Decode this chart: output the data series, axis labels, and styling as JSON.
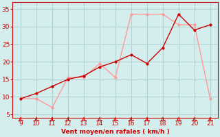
{
  "x_values": [
    9,
    10,
    11,
    12,
    13,
    14,
    15,
    16,
    17,
    18,
    19,
    20,
    21
  ],
  "wind_avg": [
    9.5,
    11,
    13,
    15,
    16,
    18.5,
    20,
    22,
    19.5,
    24,
    33.5,
    29,
    30.5
  ],
  "wind_gust": [
    9.5,
    9.5,
    7,
    15.5,
    15.5,
    19.5,
    15.5,
    33.5,
    33.5,
    33.5,
    30.5,
    30.5,
    9.5
  ],
  "color_avg": "#cc0000",
  "color_gust": "#ff9999",
  "background": "#d4eded",
  "grid_color": "#b0d4d4",
  "xlabel": "Vent moyen/en rafales ( km/h )",
  "ylim": [
    4,
    37
  ],
  "xlim": [
    8.5,
    21.5
  ],
  "yticks": [
    5,
    10,
    15,
    20,
    25,
    30,
    35
  ],
  "xticks": [
    9,
    10,
    11,
    12,
    13,
    14,
    15,
    16,
    17,
    18,
    19,
    20,
    21
  ],
  "marker_size": 3.0
}
